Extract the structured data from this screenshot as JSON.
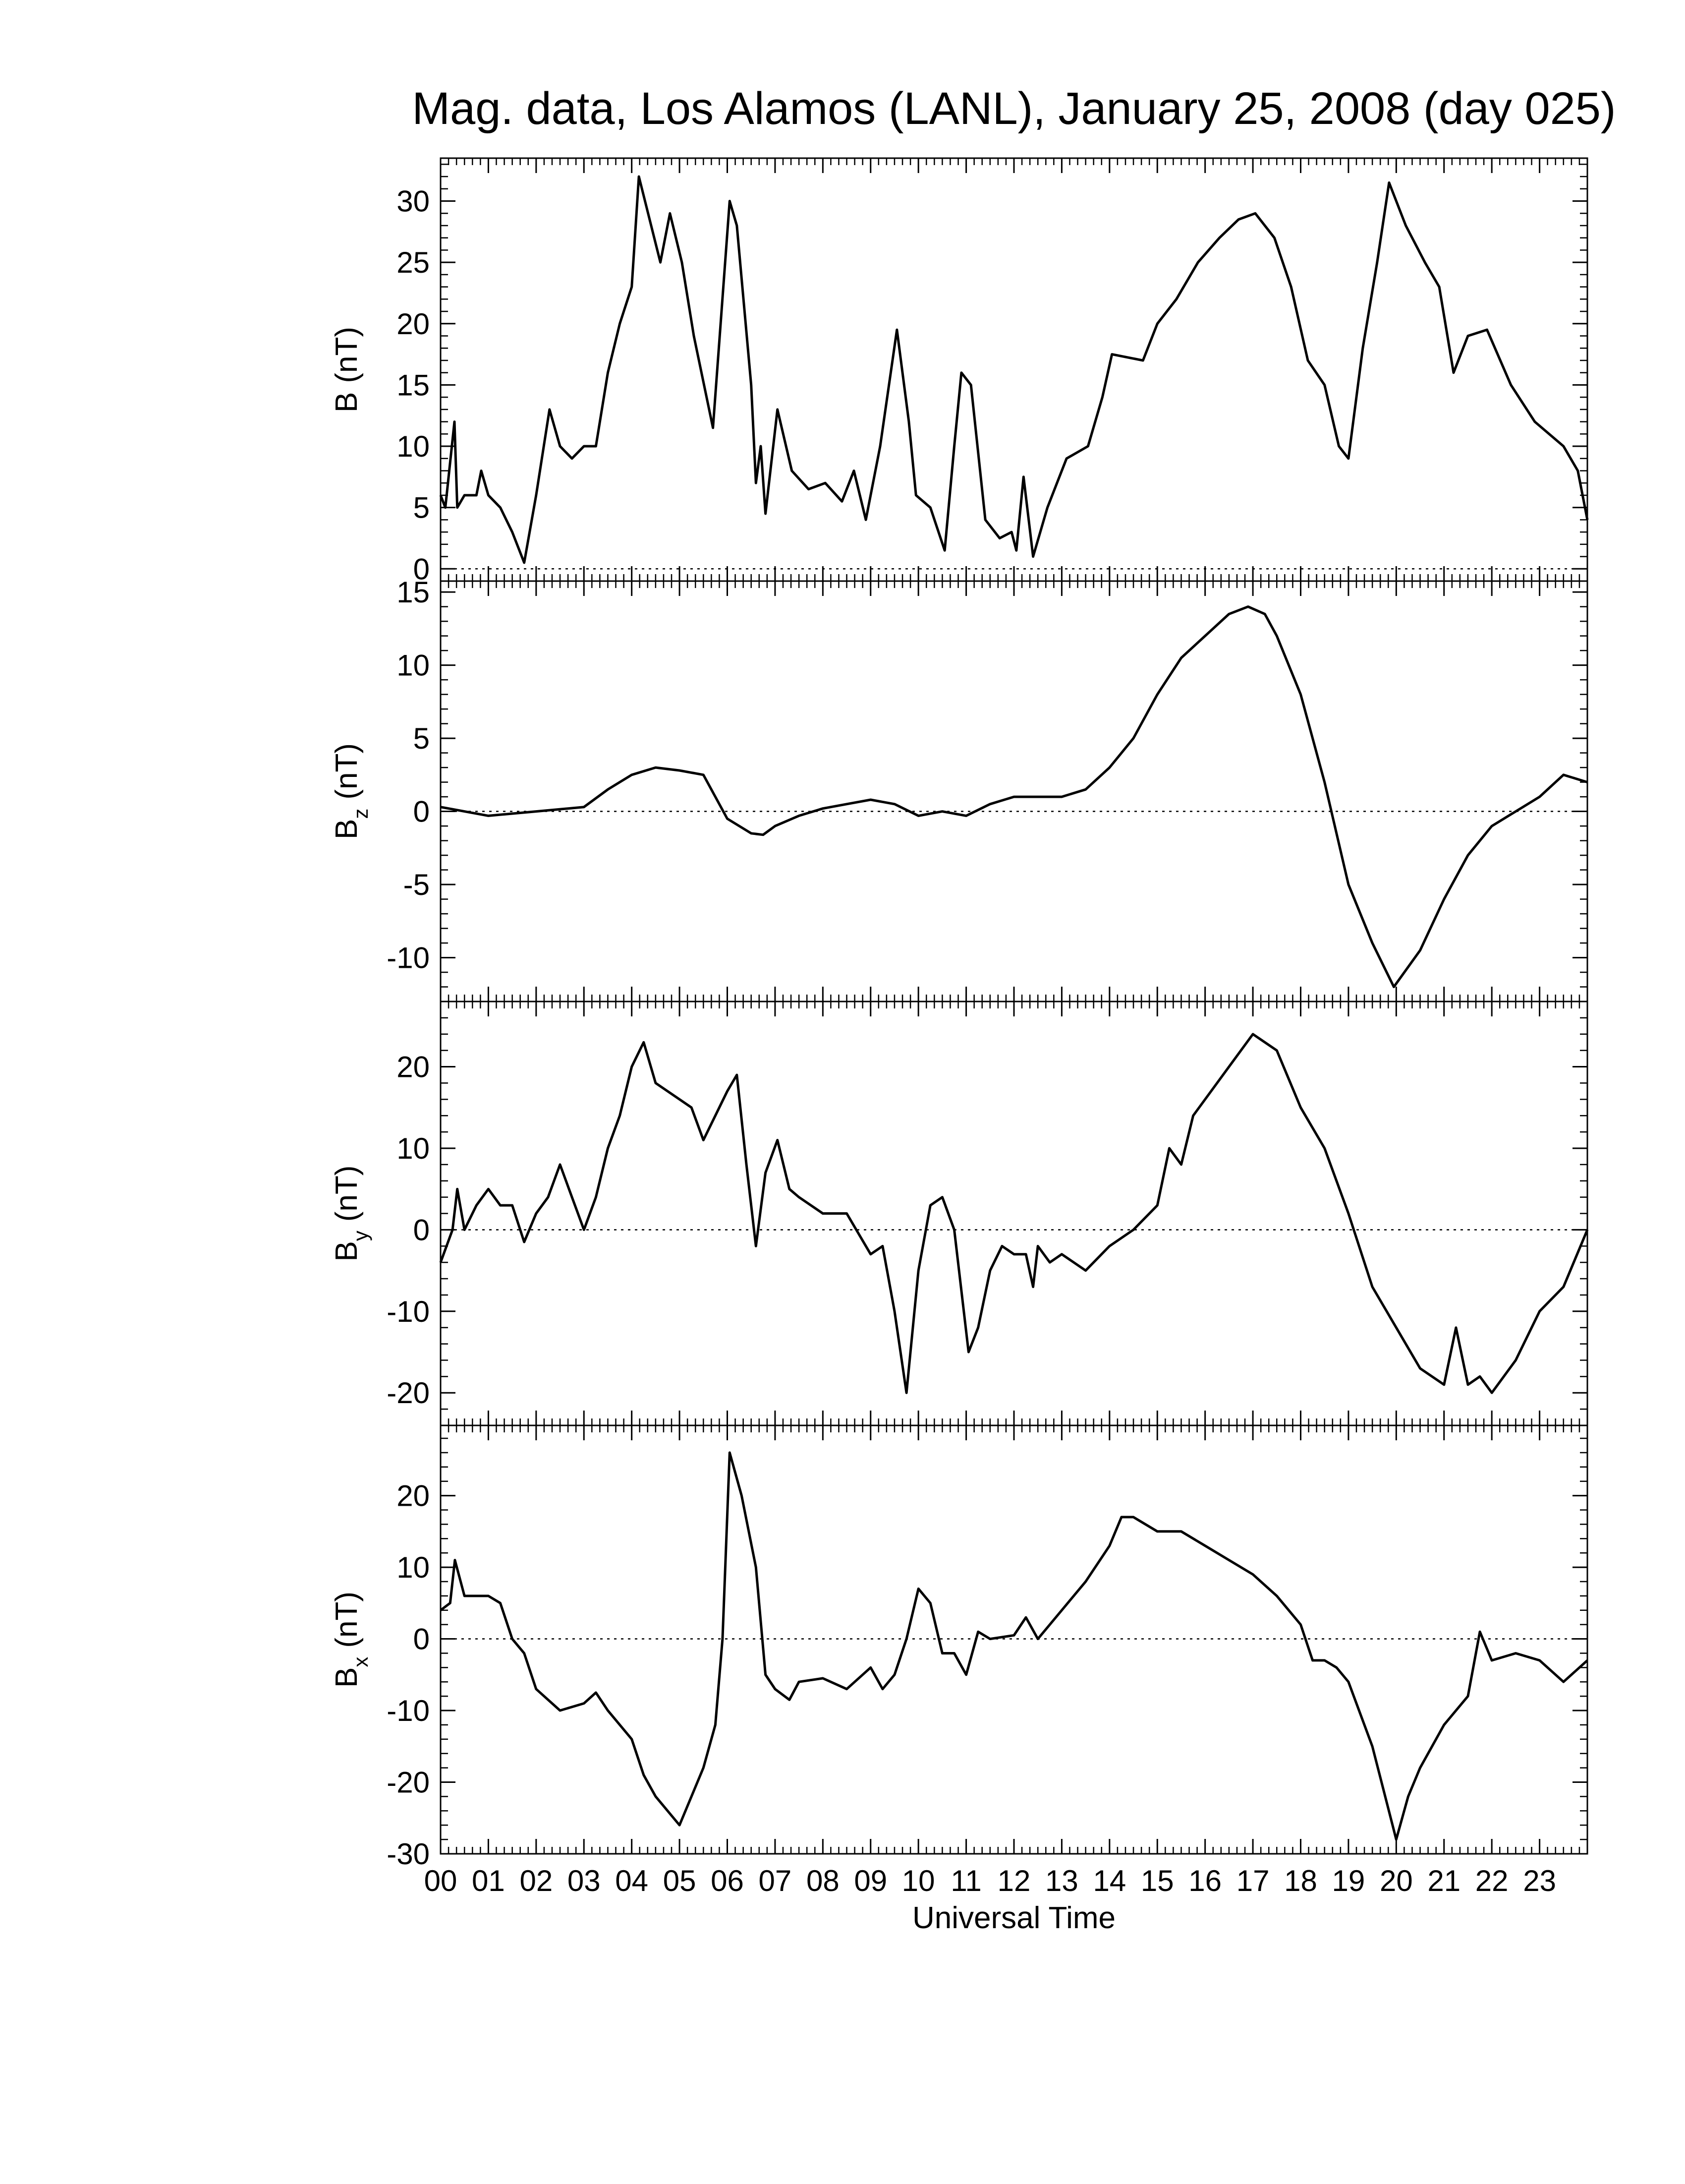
{
  "chart_data": [
    {
      "type": "line",
      "title": "Mag. data, Los Alamos (LANL), January 25, 2008 (day 025)",
      "ylabel": "B",
      "ylabel_unit": "(nT)",
      "color": "#000000",
      "hline": 0,
      "xlim": [
        0,
        24
      ],
      "ylim": [
        -1,
        33.5
      ],
      "yticks": [
        0,
        5,
        10,
        15,
        20,
        25,
        30
      ],
      "x": [
        0,
        0.1,
        0.29,
        0.35,
        0.5,
        0.75,
        0.85,
        1,
        1.25,
        1.5,
        1.75,
        2,
        2.28,
        2.5,
        2.75,
        3,
        3.25,
        3.5,
        3.75,
        4,
        4.15,
        4.6,
        4.8,
        5.05,
        5.3,
        5.7,
        6.05,
        6.2,
        6.5,
        6.6,
        6.7,
        6.8,
        7.05,
        7.35,
        7.7,
        8.05,
        8.4,
        8.65,
        8.9,
        9.2,
        9.55,
        9.8,
        9.95,
        10.25,
        10.55,
        10.75,
        10.9,
        11.1,
        11.4,
        11.7,
        11.95,
        12.05,
        12.2,
        12.4,
        12.7,
        12.9,
        13.1,
        13.55,
        13.85,
        14.05,
        14.7,
        15,
        15.4,
        15.85,
        16.3,
        16.7,
        17.05,
        17.45,
        17.8,
        18.15,
        18.5,
        18.8,
        19,
        19.3,
        19.6,
        19.85,
        20.2,
        20.6,
        20.9,
        21.2,
        21.5,
        21.9,
        22.4,
        22.9,
        23.5,
        23.8,
        24
      ],
      "values": [
        6,
        5,
        12,
        5,
        6,
        6,
        8,
        6,
        5,
        3,
        0.5,
        6,
        13,
        10,
        9,
        10,
        10,
        16,
        20,
        23,
        32,
        25,
        29,
        25,
        19,
        11.5,
        30,
        28,
        15,
        7,
        10,
        4.5,
        13,
        8,
        6.5,
        7,
        5.5,
        8,
        4,
        10,
        19.5,
        12,
        6,
        5,
        1.5,
        10,
        16,
        15,
        4,
        2.5,
        3,
        1.5,
        7.5,
        1,
        5,
        7,
        9,
        10,
        14,
        17.5,
        17,
        20,
        22,
        25,
        27,
        28.5,
        29,
        27,
        23,
        17,
        15,
        10,
        9,
        18,
        25,
        31.5,
        28,
        25,
        23,
        16,
        19,
        19.5,
        15,
        12,
        10,
        8,
        4
      ]
    },
    {
      "type": "line",
      "ylabel": "B",
      "ylabel_sub": "z",
      "ylabel_unit": "(nT)",
      "color": "#000000",
      "hline": 0,
      "xlim": [
        0,
        24
      ],
      "ylim": [
        -13,
        15.75
      ],
      "yticks": [
        -10,
        -5,
        0,
        5,
        10,
        15
      ],
      "x": [
        0,
        1,
        2,
        3,
        3.5,
        4,
        4.5,
        5,
        5.5,
        5.75,
        6,
        6.5,
        6.75,
        7,
        7.5,
        8,
        8.5,
        9,
        9.5,
        10,
        10.5,
        11,
        11.5,
        12,
        12.5,
        13,
        13.5,
        14,
        14.5,
        15,
        15.5,
        16,
        16.5,
        16.9,
        17.25,
        17.5,
        18,
        18.5,
        19,
        19.5,
        19.95,
        20.5,
        21,
        21.5,
        22,
        22.5,
        23,
        23.5,
        24
      ],
      "values": [
        0.3,
        -0.3,
        0,
        0.3,
        1.5,
        2.5,
        3,
        2.8,
        2.5,
        1,
        -0.5,
        -1.5,
        -1.6,
        -1,
        -0.3,
        0.2,
        0.5,
        0.8,
        0.5,
        -0.3,
        0,
        -0.3,
        0.5,
        1,
        1,
        1,
        1.5,
        3,
        5,
        8,
        10.5,
        12,
        13.5,
        14,
        13.5,
        12,
        8,
        2,
        -5,
        -9,
        -12,
        -9.5,
        -6,
        -3,
        -1,
        0,
        1,
        2.5,
        2
      ]
    },
    {
      "type": "line",
      "ylabel": "B",
      "ylabel_sub": "y",
      "ylabel_unit": "(nT)",
      "color": "#000000",
      "hline": 0,
      "xlim": [
        0,
        24
      ],
      "ylim": [
        -24,
        28
      ],
      "yticks": [
        -20,
        -10,
        0,
        10,
        20
      ],
      "x": [
        0,
        0.25,
        0.35,
        0.5,
        0.75,
        1,
        1.25,
        1.5,
        1.75,
        2,
        2.25,
        2.5,
        2.75,
        3,
        3.25,
        3.5,
        3.75,
        4,
        4.25,
        4.5,
        5,
        5.25,
        5.5,
        6,
        6.2,
        6.4,
        6.6,
        6.8,
        7.05,
        7.3,
        7.5,
        8,
        8.5,
        9,
        9.25,
        9.5,
        9.75,
        10,
        10.25,
        10.5,
        10.75,
        11.05,
        11.25,
        11.5,
        11.75,
        12,
        12.25,
        12.4,
        12.5,
        12.75,
        13,
        13.5,
        14,
        14.5,
        15,
        15.25,
        15.5,
        15.75,
        16,
        16.5,
        17,
        17.5,
        18,
        18.5,
        19,
        19.5,
        20,
        20.5,
        21,
        21.25,
        21.5,
        21.75,
        22,
        22.5,
        23,
        23.5,
        24
      ],
      "values": [
        -4,
        0,
        5,
        0,
        3,
        5,
        3,
        3,
        -1.5,
        2,
        4,
        8,
        4,
        0,
        4,
        10,
        14,
        20,
        23,
        18,
        16,
        15,
        11,
        17,
        19,
        8,
        -2,
        7,
        11,
        5,
        4,
        2,
        2,
        -3,
        -2,
        -10,
        -20,
        -5,
        3,
        4,
        0,
        -15,
        -12,
        -5,
        -2,
        -3,
        -3,
        -7,
        -2,
        -4,
        -3,
        -5,
        -2,
        0,
        3,
        10,
        8,
        14,
        16,
        20,
        24,
        22,
        15,
        10,
        2,
        -7,
        -12,
        -17,
        -19,
        -12,
        -19,
        -18,
        -20,
        -16,
        -10,
        -7,
        0
      ]
    },
    {
      "type": "line",
      "ylabel": "B",
      "ylabel_sub": "x",
      "ylabel_unit": "(nT)",
      "color": "#000000",
      "hline": 0,
      "x_label": "Universal Time",
      "xlim": [
        0,
        24
      ],
      "xticks": [
        {
          "value": 0,
          "label": "00"
        },
        {
          "value": 1,
          "label": "01"
        },
        {
          "value": 2,
          "label": "02"
        },
        {
          "value": 3,
          "label": "03"
        },
        {
          "value": 4,
          "label": "04"
        },
        {
          "value": 5,
          "label": "05"
        },
        {
          "value": 6,
          "label": "06"
        },
        {
          "value": 7,
          "label": "07"
        },
        {
          "value": 8,
          "label": "08"
        },
        {
          "value": 9,
          "label": "09"
        },
        10,
        11,
        12,
        13,
        14,
        15,
        16,
        17,
        18,
        19,
        20,
        21,
        22,
        23
      ],
      "ylim": [
        -30,
        29.8
      ],
      "yticks": [
        -30,
        -20,
        -10,
        0,
        10,
        20
      ],
      "x": [
        0,
        0.2,
        0.3,
        0.5,
        1,
        1.25,
        1.5,
        1.75,
        2,
        2.5,
        3,
        3.25,
        3.5,
        4,
        4.25,
        4.5,
        5,
        5.25,
        5.5,
        5.75,
        5.9,
        6.05,
        6.3,
        6.6,
        6.8,
        7,
        7.3,
        7.5,
        8,
        8.5,
        9,
        9.25,
        9.5,
        9.75,
        10,
        10.25,
        10.5,
        10.75,
        11,
        11.25,
        11.5,
        12,
        12.25,
        12.5,
        13,
        13.5,
        14,
        14.25,
        14.5,
        15,
        15.5,
        16,
        16.5,
        17,
        17.5,
        18,
        18.25,
        18.5,
        18.75,
        19,
        19.5,
        20,
        20.25,
        20.5,
        21,
        21.5,
        21.75,
        22,
        22.5,
        23,
        23.5,
        24
      ],
      "values": [
        4,
        5,
        11,
        6,
        6,
        5,
        0,
        -2,
        -7,
        -10,
        -9,
        -7.5,
        -10,
        -14,
        -19,
        -22,
        -26,
        -22,
        -18,
        -12,
        0,
        26,
        20,
        10,
        -5,
        -7,
        -8.5,
        -6,
        -5.5,
        -7,
        -4,
        -7,
        -5,
        0,
        7,
        5,
        -2,
        -2,
        -5,
        1,
        0,
        0.5,
        3,
        0,
        4,
        8,
        13,
        17,
        17,
        15,
        15,
        13,
        11,
        9,
        6,
        2,
        -3,
        -3,
        -4,
        -6,
        -15,
        -28,
        -22,
        -18,
        -12,
        -8,
        1,
        -3,
        -2,
        -3,
        -6,
        -3
      ]
    }
  ]
}
